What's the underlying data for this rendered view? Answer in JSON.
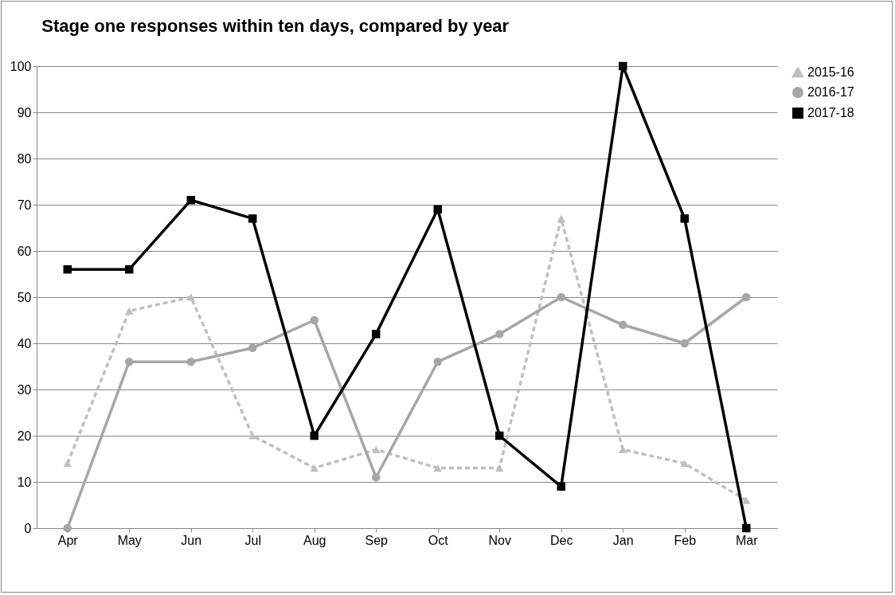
{
  "chart_data": {
    "type": "line",
    "title": "Stage one responses within ten days, compared by year",
    "categories": [
      "Apr",
      "May",
      "Jun",
      "Jul",
      "Aug",
      "Sep",
      "Oct",
      "Nov",
      "Dec",
      "Jan",
      "Feb",
      "Mar"
    ],
    "series": [
      {
        "name": "2015-16",
        "color": "#bfbfbf",
        "marker": "triangle",
        "line_style": "dashed",
        "values": [
          14,
          47,
          50,
          20,
          13,
          17,
          13,
          13,
          67,
          17,
          14,
          6
        ]
      },
      {
        "name": "2016-17",
        "color": "#a6a6a6",
        "marker": "circle",
        "line_style": "solid",
        "values": [
          0,
          36,
          36,
          39,
          45,
          11,
          36,
          42,
          50,
          44,
          40,
          50
        ]
      },
      {
        "name": "2017-18",
        "color": "#000000",
        "marker": "square",
        "line_style": "solid",
        "values": [
          56,
          56,
          71,
          67,
          20,
          42,
          69,
          20,
          9,
          100,
          67,
          0
        ]
      }
    ],
    "ylim": [
      0,
      100
    ],
    "yticks": [
      0,
      10,
      20,
      30,
      40,
      50,
      60,
      70,
      80,
      90,
      100
    ],
    "grid": "y",
    "legend": "right"
  }
}
